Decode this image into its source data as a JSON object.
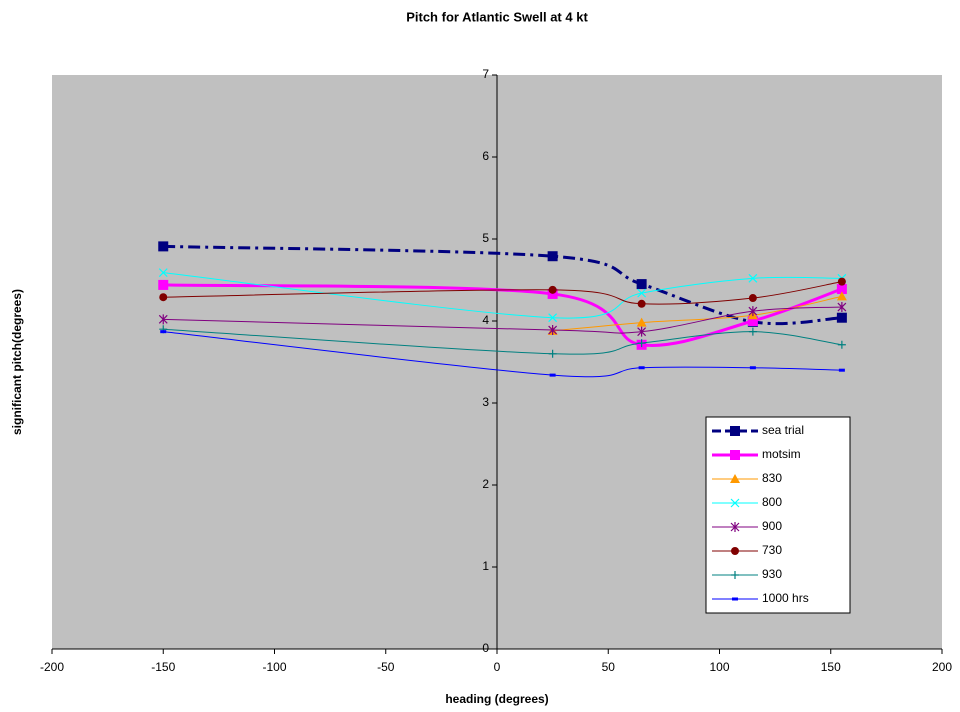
{
  "chart_data": {
    "type": "line",
    "title": "Pitch for Atlantic Swell at 4 kt",
    "x_label": "heading (degrees)",
    "y_label": "significant pitch(degrees)",
    "xlim": [
      -200,
      200
    ],
    "xticks": [
      -200,
      -150,
      -100,
      -50,
      0,
      50,
      100,
      150,
      200
    ],
    "ylim": [
      0,
      7
    ],
    "yticks": [
      0,
      1,
      2,
      3,
      4,
      5,
      6,
      7
    ],
    "x": [
      -150,
      25,
      65,
      115,
      155
    ],
    "smooth": true,
    "legend": "lower right",
    "background": "#c0c0c0",
    "series": [
      {
        "name": "sea trial",
        "color": "#000080",
        "width": 3,
        "dash": "12 5 3 5",
        "marker": "square",
        "values": [
          4.91,
          4.79,
          4.45,
          3.99,
          4.04
        ]
      },
      {
        "name": "motsim",
        "color": "#ff00ff",
        "width": 3,
        "marker": "square",
        "values": [
          4.44,
          4.33,
          3.71,
          4.0,
          4.39
        ]
      },
      {
        "name": "830",
        "color": "#ff9900",
        "width": 1,
        "marker": "triangle",
        "values": [
          null,
          3.88,
          3.98,
          4.07,
          4.3
        ]
      },
      {
        "name": "800",
        "color": "#00ffff",
        "width": 1,
        "marker": "x",
        "values": [
          4.59,
          4.04,
          4.34,
          4.52,
          4.52
        ]
      },
      {
        "name": "900",
        "color": "#800080",
        "width": 1,
        "marker": "star",
        "values": [
          4.02,
          3.89,
          3.87,
          4.12,
          4.17
        ]
      },
      {
        "name": "730",
        "color": "#800000",
        "width": 1,
        "marker": "circle",
        "values": [
          4.29,
          4.38,
          4.21,
          4.28,
          4.48
        ]
      },
      {
        "name": "930",
        "color": "#008080",
        "width": 1,
        "marker": "plus",
        "values": [
          3.9,
          3.6,
          3.73,
          3.87,
          3.71
        ]
      },
      {
        "name": "1000 hrs",
        "color": "#0000ff",
        "width": 1,
        "marker": "dash",
        "values": [
          3.87,
          3.34,
          3.43,
          3.43,
          3.4
        ]
      }
    ]
  }
}
